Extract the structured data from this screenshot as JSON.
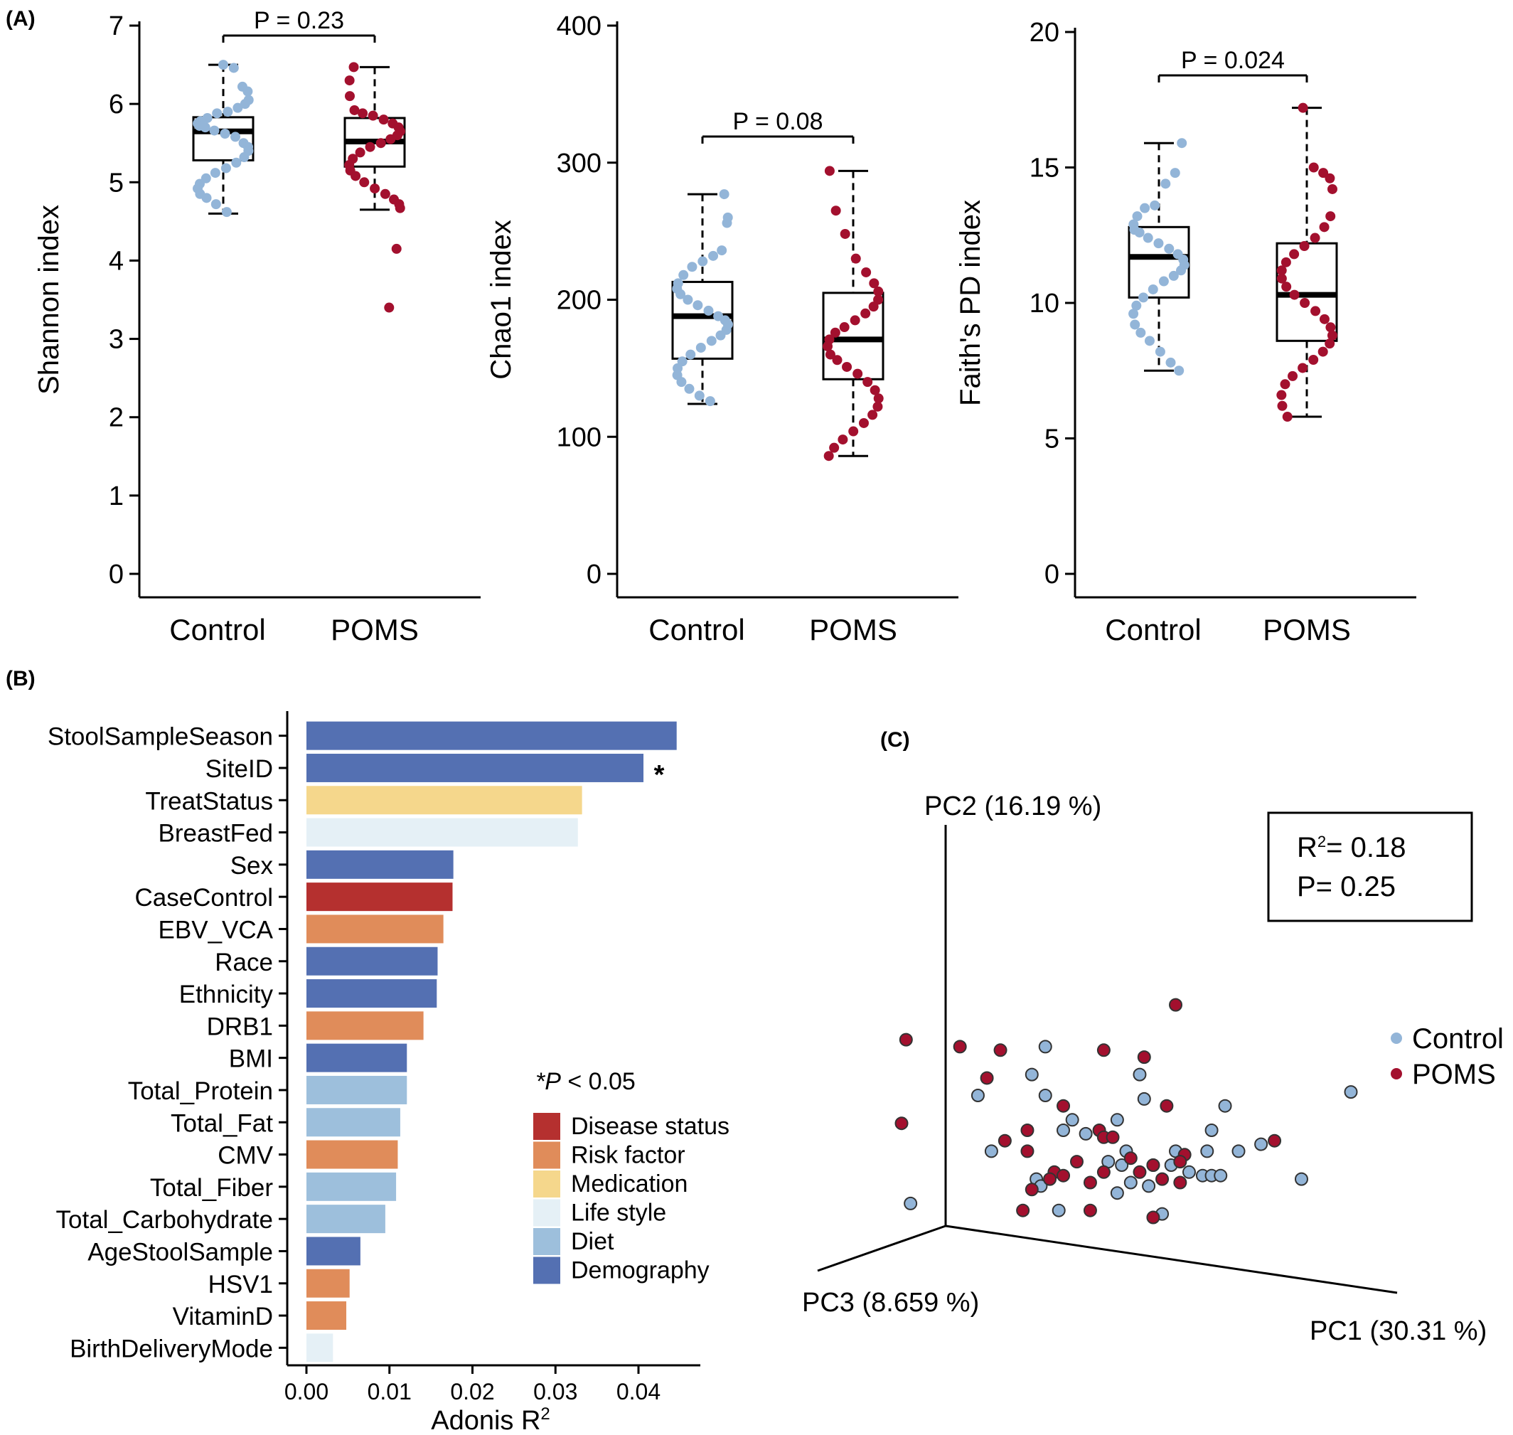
{
  "panel_labels": {
    "a": "(A)",
    "b": "(B)",
    "c": "(C)"
  },
  "colors": {
    "control": "#93b5d8",
    "poms": "#a3102e",
    "Disease status": "#b5302f",
    "Risk factor": "#e08c5a",
    "Medication": "#f5d78c",
    "Life style": "#e5f0f6",
    "Diet": "#9dbfdc",
    "Demography": "#5470b2"
  },
  "chart_data": [
    {
      "type": "box",
      "id": "shannon",
      "ylabel": "Shannon index",
      "ylim": [
        0,
        7
      ],
      "yticks": [
        0,
        1,
        2,
        3,
        4,
        5,
        6,
        7
      ],
      "categories": [
        "Control",
        "POMS"
      ],
      "p_label": "P = 0.23",
      "boxes": [
        {
          "name": "Control",
          "min": 4.6,
          "q1": 5.28,
          "median": 5.65,
          "q3": 5.83,
          "max": 6.5,
          "points": [
            6.5,
            6.46,
            6.22,
            6.16,
            6.05,
            6.0,
            5.95,
            5.9,
            5.88,
            5.82,
            5.78,
            5.75,
            5.72,
            5.7,
            5.66,
            5.62,
            5.58,
            5.5,
            5.45,
            5.4,
            5.32,
            5.25,
            5.18,
            5.12,
            5.05,
            4.98,
            4.92,
            4.85,
            4.8,
            4.72,
            4.62
          ]
        },
        {
          "name": "POMS",
          "min": 4.65,
          "q1": 5.2,
          "median": 5.52,
          "q3": 5.82,
          "max": 6.47,
          "points": [
            6.47,
            6.3,
            6.1,
            5.92,
            5.88,
            5.85,
            5.8,
            5.75,
            5.7,
            5.65,
            5.6,
            5.55,
            5.5,
            5.45,
            5.38,
            5.3,
            5.22,
            5.15,
            5.08,
            5.0,
            4.92,
            4.85,
            4.78,
            4.72,
            4.67,
            4.15,
            3.4
          ]
        }
      ]
    },
    {
      "type": "box",
      "id": "chao1",
      "ylabel": "Chao1 index",
      "ylim": [
        0,
        400
      ],
      "yticks": [
        0,
        100,
        200,
        300,
        400
      ],
      "categories": [
        "Control",
        "POMS"
      ],
      "p_label": "P = 0.08",
      "boxes": [
        {
          "name": "Control",
          "min": 124,
          "q1": 157,
          "median": 188,
          "q3": 213,
          "max": 277,
          "points": [
            277,
            260,
            256,
            236,
            232,
            228,
            224,
            218,
            212,
            208,
            204,
            200,
            196,
            192,
            188,
            185,
            182,
            178,
            174,
            170,
            165,
            160,
            155,
            150,
            145,
            140,
            135,
            130,
            126
          ]
        },
        {
          "name": "POMS",
          "min": 86,
          "q1": 142,
          "median": 171,
          "q3": 205,
          "max": 294,
          "points": [
            294,
            265,
            248,
            230,
            220,
            212,
            206,
            200,
            195,
            190,
            185,
            180,
            176,
            171,
            166,
            160,
            156,
            151,
            146,
            140,
            134,
            128,
            122,
            116,
            110,
            104,
            98,
            92,
            86
          ]
        }
      ]
    },
    {
      "type": "box",
      "id": "faith",
      "ylabel": "Faith's PD index",
      "ylim": [
        0,
        20
      ],
      "yticks": [
        0,
        5,
        10,
        15,
        20
      ],
      "categories": [
        "Control",
        "POMS"
      ],
      "p_label": "P = 0.024",
      "boxes": [
        {
          "name": "Control",
          "min": 7.5,
          "q1": 10.2,
          "median": 11.7,
          "q3": 12.8,
          "max": 15.9,
          "points": [
            15.9,
            14.8,
            14.4,
            13.6,
            13.5,
            13.2,
            12.9,
            12.7,
            12.6,
            12.4,
            12.2,
            12.0,
            11.8,
            11.6,
            11.4,
            11.2,
            11.0,
            10.8,
            10.5,
            10.2,
            9.9,
            9.6,
            9.2,
            8.9,
            8.6,
            8.2,
            7.8,
            7.5
          ]
        },
        {
          "name": "POMS",
          "min": 5.8,
          "q1": 8.6,
          "median": 10.3,
          "q3": 12.2,
          "max": 17.2,
          "points": [
            17.2,
            15.0,
            14.8,
            14.6,
            14.2,
            13.2,
            12.8,
            12.4,
            12.1,
            11.8,
            11.5,
            11.2,
            10.9,
            10.6,
            10.3,
            10.0,
            9.7,
            9.4,
            9.1,
            8.8,
            8.5,
            8.2,
            7.9,
            7.6,
            7.3,
            7.0,
            6.6,
            6.2,
            5.8
          ]
        }
      ]
    },
    {
      "type": "bar",
      "id": "adonis",
      "orientation": "horizontal",
      "xlabel": "Adonis R",
      "xlabel_sup": "2",
      "xlim": [
        0,
        0.046
      ],
      "xticks": [
        "0.00",
        "0.01",
        "0.02",
        "0.03",
        "0.04"
      ],
      "significance_note": "*P < 0.05",
      "significance_note_parts": [
        "*",
        "P",
        " < 0.05"
      ],
      "legend": [
        "Disease status",
        "Risk factor",
        "Medication",
        "Life style",
        "Diet",
        "Demography"
      ],
      "categories": [
        "StoolSampleSeason",
        "SiteID",
        "TreatStatus",
        "BreastFed",
        "Sex",
        "CaseControl",
        "EBV_VCA",
        "Race",
        "Ethnicity",
        "DRB1",
        "BMI",
        "Total_Protein",
        "Total_Fat",
        "CMV",
        "Total_Fiber",
        "Total_Carbohydrate",
        "AgeStoolSample",
        "HSV1",
        "VitaminD",
        "BirthDeliveryMode"
      ],
      "values": [
        0.0446,
        0.0406,
        0.0332,
        0.0327,
        0.0177,
        0.0176,
        0.0165,
        0.0158,
        0.0157,
        0.0141,
        0.0121,
        0.0121,
        0.0113,
        0.011,
        0.0108,
        0.0095,
        0.0065,
        0.0052,
        0.0048,
        0.0032
      ],
      "groups": [
        "Demography",
        "Demography",
        "Medication",
        "Life style",
        "Demography",
        "Disease status",
        "Risk factor",
        "Demography",
        "Demography",
        "Risk factor",
        "Demography",
        "Diet",
        "Diet",
        "Risk factor",
        "Diet",
        "Diet",
        "Demography",
        "Risk factor",
        "Risk factor",
        "Life style"
      ],
      "significant": [
        "SiteID"
      ],
      "significance_marker": "*"
    },
    {
      "type": "scatter",
      "id": "pcoa",
      "projection": "3d",
      "axes": [
        "PC1 (30.31 %)",
        "PC2 (16.19 %)",
        "PC3 (8.659 %)"
      ],
      "stats": {
        "r2_prefix": "R",
        "r2_sup": "2",
        "r2_value": "= 0.18",
        "p": "P= 0.25"
      },
      "legend": [
        "Control",
        "POMS"
      ],
      "points": [
        {
          "g": "Control",
          "u": 0.32,
          "v": 0.69
        },
        {
          "g": "Control",
          "u": 0.29,
          "v": 0.61
        },
        {
          "g": "Control",
          "u": 0.17,
          "v": 0.55
        },
        {
          "g": "Control",
          "u": 0.32,
          "v": 0.55
        },
        {
          "g": "Control",
          "u": 0.54,
          "v": 0.54
        },
        {
          "g": "Control",
          "u": 0.72,
          "v": 0.52
        },
        {
          "g": "Control",
          "u": 0.38,
          "v": 0.48
        },
        {
          "g": "Control",
          "u": 0.48,
          "v": 0.48
        },
        {
          "g": "Control",
          "u": 0.36,
          "v": 0.45
        },
        {
          "g": "Control",
          "u": 0.41,
          "v": 0.44
        },
        {
          "g": "Control",
          "u": 0.69,
          "v": 0.45
        },
        {
          "g": "Control",
          "u": 0.8,
          "v": 0.41
        },
        {
          "g": "Control",
          "u": 0.2,
          "v": 0.39
        },
        {
          "g": "Control",
          "u": 0.5,
          "v": 0.39
        },
        {
          "g": "Control",
          "u": 0.61,
          "v": 0.39
        },
        {
          "g": "Control",
          "u": 0.68,
          "v": 0.39
        },
        {
          "g": "Control",
          "u": 0.75,
          "v": 0.39
        },
        {
          "g": "Control",
          "u": 0.46,
          "v": 0.36
        },
        {
          "g": "Control",
          "u": 0.49,
          "v": 0.35
        },
        {
          "g": "Control",
          "u": 0.56,
          "v": 0.35
        },
        {
          "g": "Control",
          "u": 0.6,
          "v": 0.35
        },
        {
          "g": "Control",
          "u": 0.64,
          "v": 0.33
        },
        {
          "g": "Control",
          "u": 0.67,
          "v": 0.32
        },
        {
          "g": "Control",
          "u": 0.69,
          "v": 0.32
        },
        {
          "g": "Control",
          "u": 0.71,
          "v": 0.32
        },
        {
          "g": "Control",
          "u": 0.3,
          "v": 0.31
        },
        {
          "g": "Control",
          "u": 0.51,
          "v": 0.3
        },
        {
          "g": "Control",
          "u": 0.89,
          "v": 0.31
        },
        {
          "g": "Control",
          "u": 0.31,
          "v": 0.29
        },
        {
          "g": "Control",
          "u": 0.55,
          "v": 0.29
        },
        {
          "g": "Control",
          "u": 0.48,
          "v": 0.27
        },
        {
          "g": "Control",
          "u": 0.02,
          "v": 0.24
        },
        {
          "g": "Control",
          "u": 0.35,
          "v": 0.22
        },
        {
          "g": "Control",
          "u": 0.58,
          "v": 0.21
        },
        {
          "g": "Control",
          "u": 1.0,
          "v": 0.56
        },
        {
          "g": "Control",
          "u": 0.53,
          "v": 0.61
        },
        {
          "g": "POMS",
          "u": 0.61,
          "v": 0.81
        },
        {
          "g": "POMS",
          "u": 0.01,
          "v": 0.71
        },
        {
          "g": "POMS",
          "u": 0.13,
          "v": 0.69
        },
        {
          "g": "POMS",
          "u": 0.22,
          "v": 0.68
        },
        {
          "g": "POMS",
          "u": 0.45,
          "v": 0.68
        },
        {
          "g": "POMS",
          "u": 0.54,
          "v": 0.66
        },
        {
          "g": "POMS",
          "u": 0.19,
          "v": 0.6
        },
        {
          "g": "POMS",
          "u": 0.36,
          "v": 0.52
        },
        {
          "g": "POMS",
          "u": 0.59,
          "v": 0.52
        },
        {
          "g": "POMS",
          "u": 0.28,
          "v": 0.45
        },
        {
          "g": "POMS",
          "u": 0.44,
          "v": 0.45
        },
        {
          "g": "POMS",
          "u": 0.45,
          "v": 0.43
        },
        {
          "g": "POMS",
          "u": 0.47,
          "v": 0.43
        },
        {
          "g": "POMS",
          "u": 0.23,
          "v": 0.42
        },
        {
          "g": "POMS",
          "u": 0.83,
          "v": 0.42
        },
        {
          "g": "POMS",
          "u": 0.28,
          "v": 0.39
        },
        {
          "g": "POMS",
          "u": 0.51,
          "v": 0.37
        },
        {
          "g": "POMS",
          "u": 0.63,
          "v": 0.38
        },
        {
          "g": "POMS",
          "u": 0.39,
          "v": 0.36
        },
        {
          "g": "POMS",
          "u": 0.56,
          "v": 0.35
        },
        {
          "g": "POMS",
          "u": 0.62,
          "v": 0.36
        },
        {
          "g": "POMS",
          "u": 0.34,
          "v": 0.33
        },
        {
          "g": "POMS",
          "u": 0.36,
          "v": 0.32
        },
        {
          "g": "POMS",
          "u": 0.45,
          "v": 0.33
        },
        {
          "g": "POMS",
          "u": 0.53,
          "v": 0.33
        },
        {
          "g": "POMS",
          "u": 0.58,
          "v": 0.31
        },
        {
          "g": "POMS",
          "u": 0.33,
          "v": 0.31
        },
        {
          "g": "POMS",
          "u": 0.42,
          "v": 0.3
        },
        {
          "g": "POMS",
          "u": 0.62,
          "v": 0.3
        },
        {
          "g": "POMS",
          "u": 0.29,
          "v": 0.28
        },
        {
          "g": "POMS",
          "u": 0.27,
          "v": 0.22
        },
        {
          "g": "POMS",
          "u": 0.42,
          "v": 0.22
        },
        {
          "g": "POMS",
          "u": 0.56,
          "v": 0.2
        },
        {
          "g": "POMS",
          "u": 0.0,
          "v": 0.47
        }
      ]
    }
  ]
}
